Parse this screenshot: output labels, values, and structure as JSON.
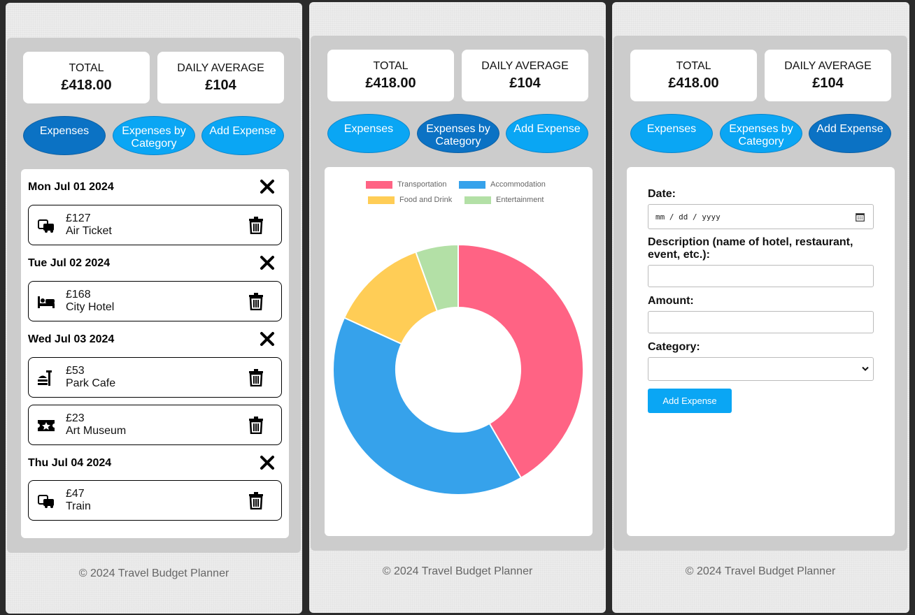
{
  "summary": {
    "total_label": "TOTAL",
    "total_value": "£418.00",
    "avg_label": "DAILY AVERAGE",
    "avg_value": "£104"
  },
  "tabs": {
    "expenses": "Expenses",
    "by_category": "Expenses by Category",
    "add": "Add Expense"
  },
  "days": [
    {
      "date": "Mon Jul 01 2024",
      "items": [
        {
          "amount": "£127",
          "name": "Air Ticket",
          "icon": "transport-icon"
        }
      ]
    },
    {
      "date": "Tue Jul 02 2024",
      "items": [
        {
          "amount": "£168",
          "name": "City Hotel",
          "icon": "bed-icon"
        }
      ]
    },
    {
      "date": "Wed Jul 03 2024",
      "items": [
        {
          "amount": "£53",
          "name": "Park Cafe",
          "icon": "food-icon"
        },
        {
          "amount": "£23",
          "name": "Art Museum",
          "icon": "ticket-icon"
        }
      ]
    },
    {
      "date": "Thu Jul 04 2024",
      "items": [
        {
          "amount": "£47",
          "name": "Train",
          "icon": "transport-icon"
        }
      ]
    }
  ],
  "chart_data": {
    "type": "pie",
    "categories": [
      "Transportation",
      "Accommodation",
      "Food and Drink",
      "Entertainment"
    ],
    "values": [
      174,
      168,
      53,
      23
    ],
    "colors": [
      "#ff6384",
      "#36a2eb",
      "#ffcd56",
      "#b3e0a6"
    ],
    "legend": "top",
    "donut": true
  },
  "form": {
    "date_label": "Date:",
    "date_placeholder": "mm / dd / yyyy",
    "desc_label": "Description (name of hotel, restaurant, event, etc.):",
    "amount_label": "Amount:",
    "category_label": "Category:",
    "submit_label": "Add Expense"
  },
  "footer": "© 2024 Travel Budget Planner"
}
